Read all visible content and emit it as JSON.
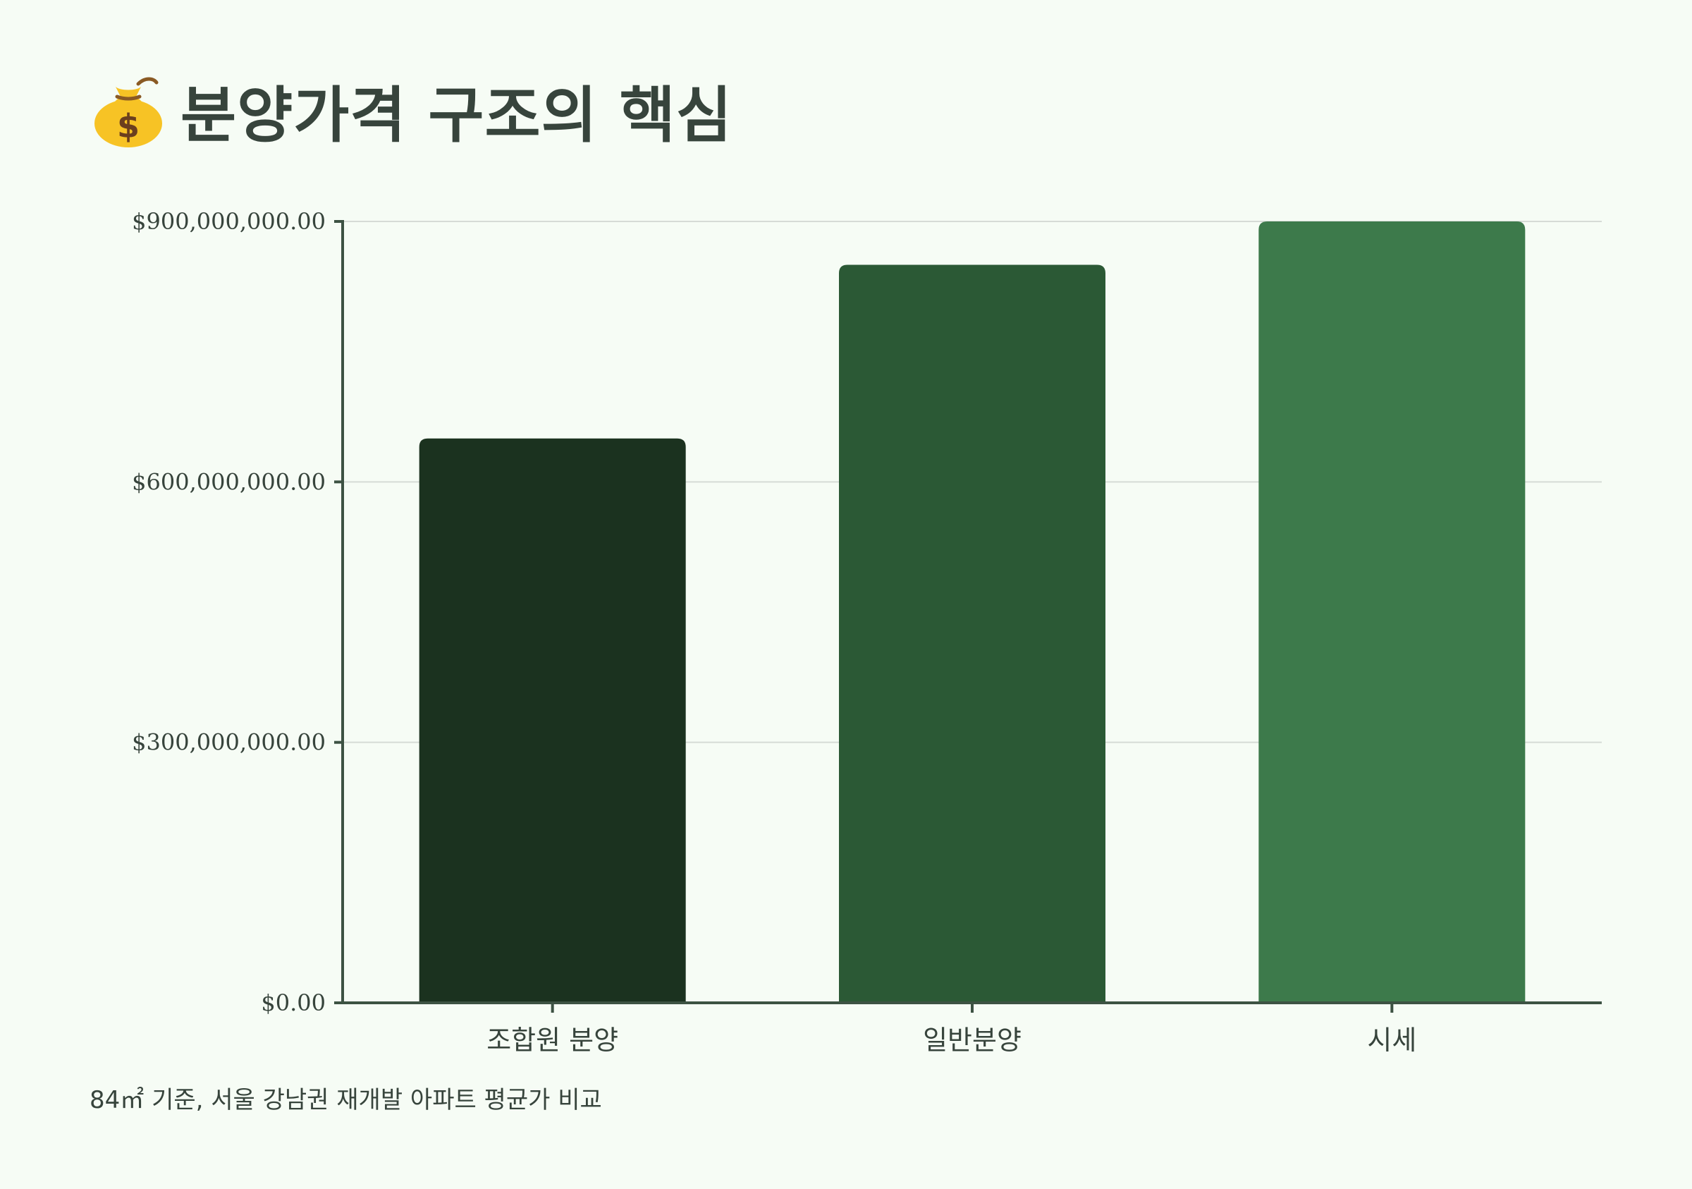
{
  "page": {
    "title_icon": "money-bag-icon",
    "title": "분양가격 구조의 핵심",
    "footnote": "84㎡ 기준, 서울 강남권 재개발 아파트 평균가 비교"
  },
  "colors": {
    "background": "#f6fcf5",
    "text": "#37443c",
    "axis": "#3d5243",
    "grid": "#d6dbd6"
  },
  "chart_data": {
    "type": "bar",
    "categories": [
      "조합원 분양",
      "일반분양",
      "시세"
    ],
    "values": [
      650000000,
      850000000,
      900000000
    ],
    "bar_colors": [
      "#1b321f",
      "#2b5935",
      "#3d7a4b"
    ],
    "ylim": [
      0,
      900000000
    ],
    "yticks": [
      {
        "value": 0,
        "label": "$0.00"
      },
      {
        "value": 300000000,
        "label": "$300,000,000.00"
      },
      {
        "value": 600000000,
        "label": "$600,000,000.00"
      },
      {
        "value": 900000000,
        "label": "$900,000,000.00"
      }
    ],
    "grid": true,
    "xlabel": "",
    "ylabel": ""
  }
}
